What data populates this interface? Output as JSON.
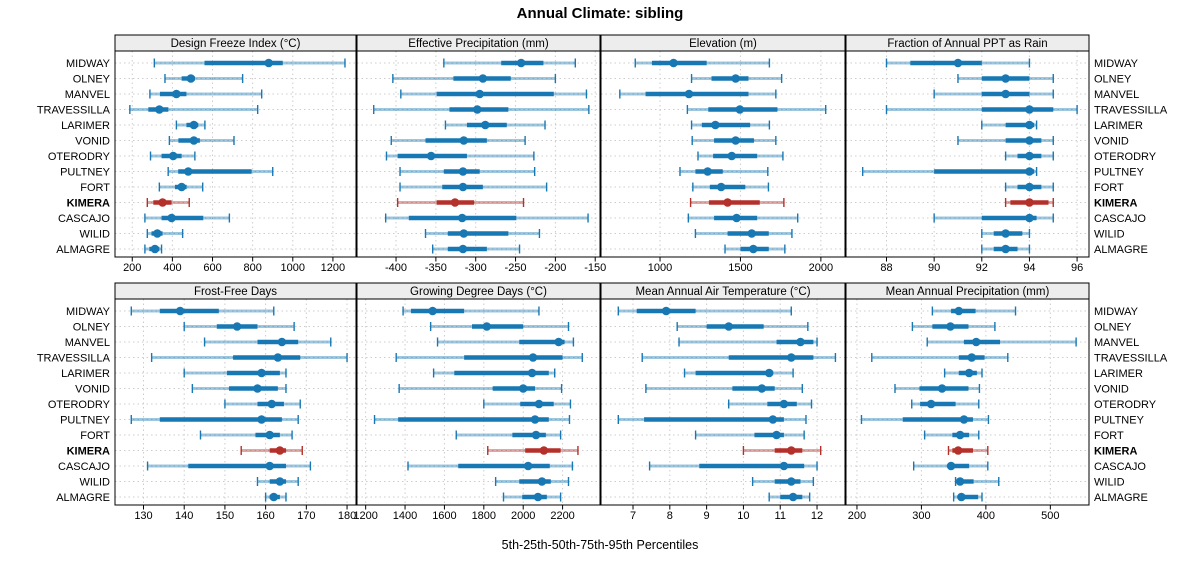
{
  "title": "Annual Climate: sibling",
  "caption": "5th-25th-50th-75th-95th Percentiles",
  "percentile_labels": [
    "5th",
    "25th",
    "50th",
    "75th",
    "95th"
  ],
  "stations": [
    "MIDWAY",
    "OLNEY",
    "MANVEL",
    "TRAVESSILLA",
    "LARIMER",
    "VONID",
    "OTERODRY",
    "PULTNEY",
    "FORT",
    "KIMERA",
    "CASCAJO",
    "WILID",
    "ALMAGRE"
  ],
  "highlight_station": "KIMERA",
  "colors": {
    "series_blue": "#1878b4",
    "highlight_red": "#b5302a",
    "grid": "#cccccc",
    "strip_fill": "#ededed",
    "panel_border": "#000000"
  },
  "chart_data": [
    {
      "type": "dotplot-interval",
      "title": "Design Freeze Index (°C)",
      "xlim": [
        114,
        1315
      ],
      "ticks": [
        200,
        400,
        600,
        800,
        1000,
        1200
      ],
      "values": [
        [
          310,
          560,
          880,
          950,
          1260
        ],
        [
          363,
          446,
          492,
          512,
          750
        ],
        [
          288,
          338,
          420,
          470,
          845
        ],
        [
          188,
          280,
          335,
          380,
          825
        ],
        [
          420,
          470,
          507,
          529,
          562
        ],
        [
          385,
          430,
          507,
          537,
          707
        ],
        [
          291,
          346,
          404,
          446,
          512
        ],
        [
          379,
          429,
          479,
          795,
          900
        ],
        [
          335,
          413,
          446,
          471,
          551
        ],
        [
          275,
          305,
          351,
          396,
          484
        ],
        [
          263,
          346,
          396,
          554,
          684
        ],
        [
          275,
          296,
          325,
          351,
          451
        ],
        [
          263,
          285,
          313,
          335,
          346
        ]
      ]
    },
    {
      "type": "dotplot-interval",
      "title": "Effective Precipitation (mm)",
      "xlim": [
        -449,
        -144
      ],
      "ticks": [
        -400,
        -350,
        -300,
        -250,
        -200,
        -150
      ],
      "values": [
        [
          -340,
          -268,
          -243,
          -215,
          -175
        ],
        [
          -404,
          -328,
          -291,
          -256,
          -200
        ],
        [
          -394,
          -349,
          -295,
          -202,
          -161
        ],
        [
          -428,
          -333,
          -298,
          -259,
          -158
        ],
        [
          -338,
          -311,
          -288,
          -261,
          -213
        ],
        [
          -406,
          -363,
          -315,
          -286,
          -238
        ],
        [
          -412,
          -398,
          -356,
          -311,
          -227
        ],
        [
          -395,
          -340,
          -316,
          -295,
          -226
        ],
        [
          -395,
          -342,
          -316,
          -291,
          -211
        ],
        [
          -398,
          -349,
          -326,
          -302,
          -240
        ],
        [
          -413,
          -384,
          -317,
          -249,
          -159
        ],
        [
          -363,
          -335,
          -315,
          -259,
          -220
        ],
        [
          -354,
          -335,
          -316,
          -286,
          -245
        ]
      ]
    },
    {
      "type": "dotplot-interval",
      "title": "Elevation (m)",
      "xlim": [
        633,
        2150
      ],
      "ticks": [
        1000,
        1500,
        2000
      ],
      "values": [
        [
          846,
          950,
          1084,
          1290,
          1680
        ],
        [
          1196,
          1320,
          1470,
          1550,
          1756
        ],
        [
          750,
          910,
          1180,
          1550,
          1720
        ],
        [
          1170,
          1300,
          1496,
          1730,
          2030
        ],
        [
          1196,
          1260,
          1344,
          1560,
          1680
        ],
        [
          1200,
          1336,
          1470,
          1584,
          1720
        ],
        [
          1236,
          1330,
          1446,
          1604,
          1764
        ],
        [
          1124,
          1220,
          1296,
          1390,
          1670
        ],
        [
          1204,
          1310,
          1380,
          1530,
          1674
        ],
        [
          1190,
          1304,
          1420,
          1620,
          1770
        ],
        [
          1176,
          1336,
          1476,
          1604,
          1856
        ],
        [
          1220,
          1420,
          1570,
          1676,
          1820
        ],
        [
          1404,
          1500,
          1580,
          1676,
          1776
        ]
      ]
    },
    {
      "type": "dotplot-interval",
      "title": "Fraction of Annual PPT as Rain",
      "xlim": [
        86.3,
        96.5
      ],
      "ticks": [
        88,
        90,
        92,
        94,
        96
      ],
      "values": [
        [
          88,
          89,
          91,
          92,
          94
        ],
        [
          91,
          92,
          93,
          94,
          95
        ],
        [
          90,
          92,
          93,
          94,
          95
        ],
        [
          88,
          92,
          94,
          95,
          96
        ],
        [
          92,
          93,
          94,
          94.2,
          94.3
        ],
        [
          91,
          93,
          94,
          94.5,
          95
        ],
        [
          93,
          93.5,
          94,
          94.5,
          95
        ],
        [
          87,
          90,
          94,
          94.2,
          94.3
        ],
        [
          93,
          93.5,
          94,
          94.5,
          95
        ],
        [
          93,
          93.2,
          94,
          94.8,
          95
        ],
        [
          90,
          92,
          94,
          94.3,
          95
        ],
        [
          92,
          92.5,
          93,
          93.7,
          94
        ],
        [
          92,
          92.5,
          93,
          93.5,
          94
        ]
      ]
    },
    {
      "type": "dotplot-interval",
      "title": "Frost-Free Days",
      "xlim": [
        123,
        182.2
      ],
      "ticks": [
        130,
        140,
        150,
        160,
        170,
        180
      ],
      "values": [
        [
          127,
          134,
          139,
          148.5,
          162
        ],
        [
          140,
          148,
          153,
          158,
          167
        ],
        [
          145,
          158,
          164,
          168,
          176
        ],
        [
          132,
          152,
          163,
          168.5,
          180
        ],
        [
          140,
          150.5,
          159,
          163.5,
          165
        ],
        [
          142,
          151,
          158,
          163,
          165
        ],
        [
          150,
          158,
          161.5,
          164.5,
          168.5
        ],
        [
          127,
          134,
          159,
          164,
          168
        ],
        [
          144,
          157.5,
          161,
          163.5,
          166.5
        ],
        [
          154,
          161,
          163.5,
          165,
          169
        ],
        [
          131,
          141,
          161,
          165,
          171
        ],
        [
          158,
          161,
          163.5,
          165,
          168
        ],
        [
          160,
          161,
          162,
          163.5,
          165
        ]
      ]
    },
    {
      "type": "dotplot-interval",
      "title": "Growing Degree Days (°C)",
      "xlim": [
        1156,
        2390
      ],
      "ticks": [
        1200,
        1400,
        1600,
        1800,
        2000,
        2200
      ],
      "values": [
        [
          1390,
          1430,
          1540,
          1700,
          2080
        ],
        [
          1530,
          1740,
          1815,
          2000,
          2230
        ],
        [
          1565,
          1980,
          2180,
          2210,
          2255
        ],
        [
          1355,
          1700,
          2050,
          2200,
          2300
        ],
        [
          1545,
          1650,
          2045,
          2130,
          2160
        ],
        [
          1370,
          1845,
          2000,
          2060,
          2195
        ],
        [
          1800,
          1985,
          2080,
          2155,
          2240
        ],
        [
          1245,
          1365,
          2060,
          2130,
          2235
        ],
        [
          1660,
          1945,
          2065,
          2115,
          2190
        ],
        [
          1820,
          2010,
          2105,
          2190,
          2278
        ],
        [
          1415,
          1670,
          2025,
          2135,
          2250
        ],
        [
          1860,
          1980,
          2095,
          2140,
          2230
        ],
        [
          1900,
          1995,
          2075,
          2120,
          2190
        ]
      ]
    },
    {
      "type": "dotplot-interval",
      "title": "Mean Annual Air Temperature (°C)",
      "xlim": [
        6.13,
        12.76
      ],
      "ticks": [
        7,
        8,
        9,
        10,
        11,
        12
      ],
      "values": [
        [
          6.6,
          7.1,
          7.9,
          8.7,
          11.3
        ],
        [
          8.2,
          9.0,
          9.6,
          10.55,
          11.75
        ],
        [
          8.25,
          10.9,
          11.55,
          11.9,
          12.0
        ],
        [
          7.25,
          9.6,
          11.3,
          11.9,
          12.5
        ],
        [
          8.4,
          8.7,
          10.7,
          10.8,
          11.35
        ],
        [
          7.35,
          9.7,
          10.5,
          10.85,
          11.6
        ],
        [
          9.6,
          10.65,
          11.1,
          11.45,
          11.85
        ],
        [
          6.6,
          7.3,
          10.8,
          11.1,
          11.7
        ],
        [
          8.7,
          10.3,
          10.9,
          11.1,
          11.65
        ],
        [
          10.0,
          10.85,
          11.3,
          11.6,
          12.1
        ],
        [
          7.45,
          8.8,
          11.1,
          11.65,
          12.0
        ],
        [
          10.25,
          10.85,
          11.3,
          11.55,
          11.9
        ],
        [
          10.7,
          11.0,
          11.35,
          11.6,
          11.8
        ]
      ]
    },
    {
      "type": "dotplot-interval",
      "title": "Mean Annual Precipitation (mm)",
      "xlim": [
        183,
        560
      ],
      "ticks": [
        200,
        300,
        400,
        500
      ],
      "values": [
        [
          317,
          346,
          358,
          384,
          446
        ],
        [
          286,
          317,
          345,
          373,
          414
        ],
        [
          309,
          366,
          385,
          422,
          540
        ],
        [
          223,
          358,
          378,
          398,
          434
        ],
        [
          336,
          358,
          374,
          386,
          394
        ],
        [
          259,
          297,
          332,
          373,
          390
        ],
        [
          285,
          298,
          315,
          353,
          389
        ],
        [
          207,
          271,
          366,
          380,
          404
        ],
        [
          305,
          348,
          360,
          374,
          389
        ],
        [
          342,
          348,
          357,
          380,
          403
        ],
        [
          288,
          341,
          346,
          374,
          403
        ],
        [
          353,
          358,
          360,
          381,
          420
        ],
        [
          350,
          358,
          362,
          388,
          394
        ]
      ]
    }
  ]
}
